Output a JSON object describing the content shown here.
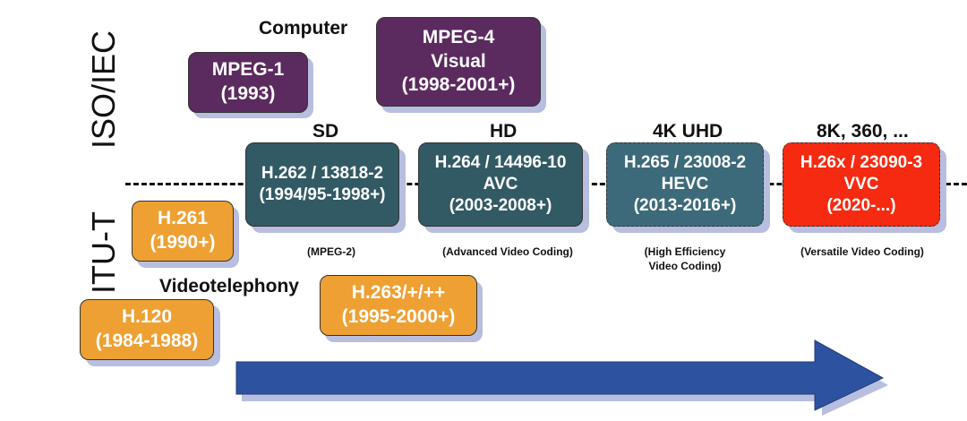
{
  "side_labels": {
    "top": "ISO/IEC",
    "bottom": "ITU-T"
  },
  "headings": {
    "computer": "Computer",
    "videotelephony": "Videotelephony",
    "sd": "SD",
    "hd": "HD",
    "uhd": "4K UHD",
    "8k": "8K, 360, ..."
  },
  "boxes": {
    "mpeg1": {
      "line1": "MPEG-1",
      "line2": "(1993)"
    },
    "mpeg4": {
      "line1": "MPEG-4",
      "line2": "Visual",
      "line3": "(1998-2001+)"
    },
    "h262": {
      "line1": "H.262 / 13818-2",
      "line2": "(1994/95-1998+)"
    },
    "h264": {
      "line1": "H.264 / 14496-10",
      "line2": "AVC",
      "line3": "(2003-2008+)"
    },
    "h265": {
      "line1": "H.265 / 23008-2",
      "line2": "HEVC",
      "line3": "(2013-2016+)"
    },
    "h26x": {
      "line1": "H.26x / 23090-3",
      "line2": "VVC",
      "line3": "(2020-...)"
    },
    "h261": {
      "line1": "H.261",
      "line2": "(1990+)"
    },
    "h263": {
      "line1": "H.263/+/++",
      "line2": "(1995-2000+)"
    },
    "h120": {
      "line1": "H.120",
      "line2": "(1984-1988)"
    }
  },
  "captions": {
    "mpeg2": "(MPEG-2)",
    "avc": "(Advanced Video Coding)",
    "hevc_line1": "(High  Efficiency",
    "hevc_line2": "Video Coding)",
    "vvc": "(Versatile Video Coding)"
  },
  "colors": {
    "iso_box": "#5b2a5e",
    "itu_box": "#eea033",
    "joint_box": "#325a65",
    "vvc_box": "#f52a10",
    "arrow": "#2d52a0",
    "shadow": "#b8bedf"
  }
}
